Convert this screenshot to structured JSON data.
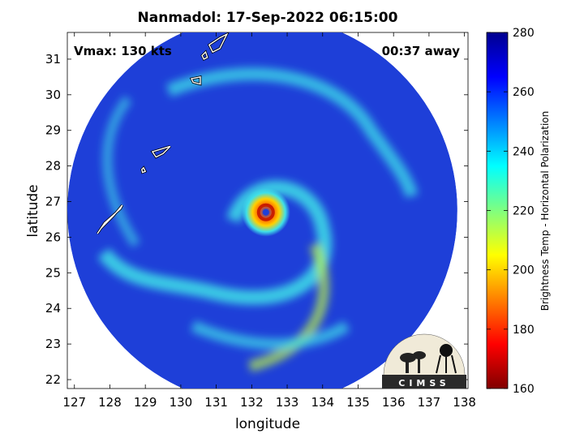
{
  "chart_data": {
    "type": "heatmap",
    "title": "Nanmadol: 17-Sep-2022 06:15:00",
    "xlabel": "longitude",
    "ylabel": "latitude",
    "xlim": [
      126.8,
      138.1
    ],
    "ylim": [
      21.75,
      31.75
    ],
    "xticks": [
      "127",
      "128",
      "129",
      "130",
      "131",
      "132",
      "133",
      "134",
      "135",
      "136",
      "137",
      "138"
    ],
    "yticks": [
      "22",
      "23",
      "24",
      "25",
      "26",
      "27",
      "28",
      "29",
      "30",
      "31"
    ],
    "annotations": {
      "vmax": "Vmax: 130 kts",
      "time_offset": "00:37 away"
    },
    "storm_center": {
      "lon": 132.4,
      "lat": 26.7
    },
    "scan_extent": {
      "center_lon": 132.3,
      "center_lat": 26.75,
      "radius_deg": 5.5
    },
    "colorbar": {
      "label": "Brightness Temp - Horizontal Polarization",
      "range": [
        160,
        280
      ],
      "ticks": [
        "280",
        "260",
        "240",
        "220",
        "200",
        "180",
        "160"
      ],
      "colormap": "jet"
    },
    "logo": "CIMSS",
    "colors": {
      "background_field": "#1e3fd8",
      "cold_band": "#3fe0e8",
      "eyewall": "#c81e00",
      "coastline": "#ffffff"
    }
  }
}
